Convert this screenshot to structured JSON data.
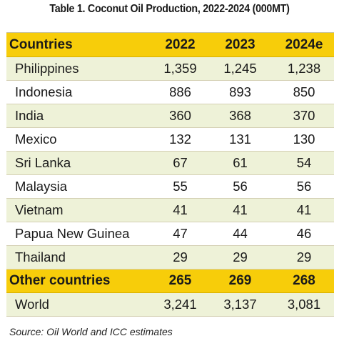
{
  "title": "Table 1. Coconut Oil Production, 2022-2024 (000MT)",
  "header": [
    "Countries",
    "2022",
    "2023",
    "2024e"
  ],
  "rows": [
    [
      "Philippines",
      "1,359",
      "1,245",
      "1,238"
    ],
    [
      "Indonesia",
      "886",
      "893",
      "850"
    ],
    [
      "India",
      "360",
      "368",
      "370"
    ],
    [
      "Mexico",
      "132",
      "131",
      "130"
    ],
    [
      "Sri Lanka",
      "67",
      "61",
      "54"
    ],
    [
      "Malaysia",
      "55",
      "56",
      "56"
    ],
    [
      "Vietnam",
      "41",
      "41",
      "41"
    ],
    [
      "Papua New Guinea",
      "47",
      "44",
      "46"
    ],
    [
      "Thailand",
      "29",
      "29",
      "29"
    ]
  ],
  "other": [
    "Other countries",
    "265",
    "269",
    "268"
  ],
  "world": [
    "World",
    "3,241",
    "3,137",
    "3,081"
  ],
  "source": "Source: Oil World and ICC estimates",
  "colors": {
    "header_bg": "#f7cd0a",
    "alt_row_bg": "#eef2d8",
    "plain_row_bg": "#ffffff"
  }
}
